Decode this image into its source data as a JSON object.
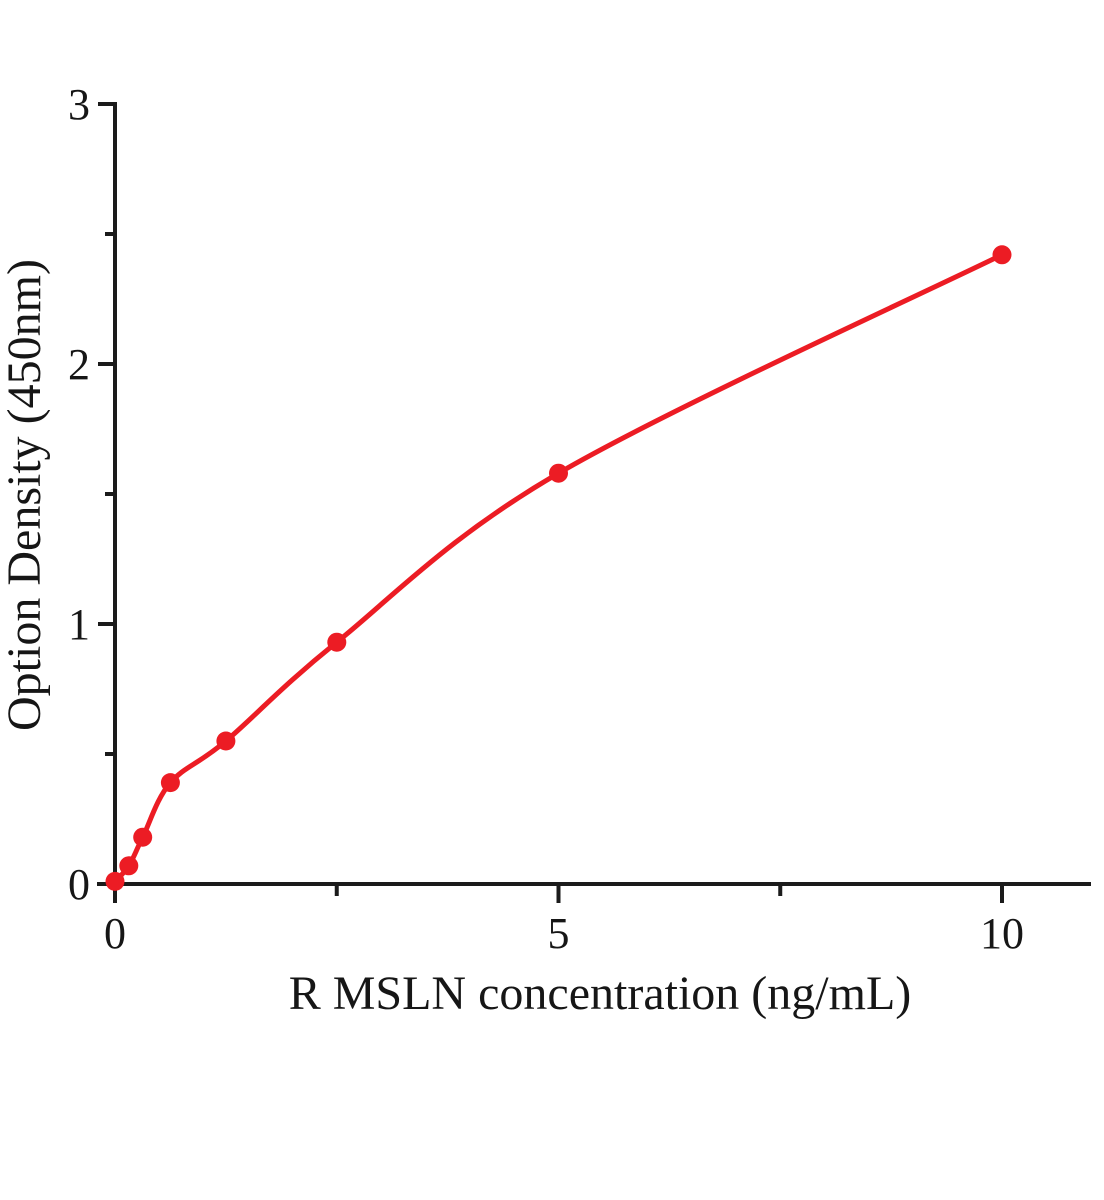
{
  "chart_data": {
    "type": "scatter",
    "title": "",
    "xlabel": "R MSLN concentration (ng/mL)",
    "ylabel": "Option Density (450nm)",
    "x": [
      0,
      0.156,
      0.3125,
      0.625,
      1.25,
      2.5,
      5,
      10
    ],
    "y": [
      0.01,
      0.07,
      0.18,
      0.39,
      0.55,
      0.93,
      1.58,
      2.42
    ],
    "fit_line": "smooth curve through all points",
    "xlim": [
      0,
      11
    ],
    "ylim": [
      0,
      3
    ],
    "x_major_ticks": [
      0,
      5,
      10
    ],
    "x_minor_ticks": [
      2.5,
      7.5
    ],
    "y_major_ticks": [
      0,
      1,
      2,
      3
    ],
    "y_minor_ticks": [
      0.5,
      1.5,
      2.5
    ],
    "grid": false,
    "legend": false,
    "marker_color": "#ec1c24",
    "line_color": "#ec1c24",
    "axis_color": "#1b1b1b",
    "background_color": "#ffffff"
  }
}
